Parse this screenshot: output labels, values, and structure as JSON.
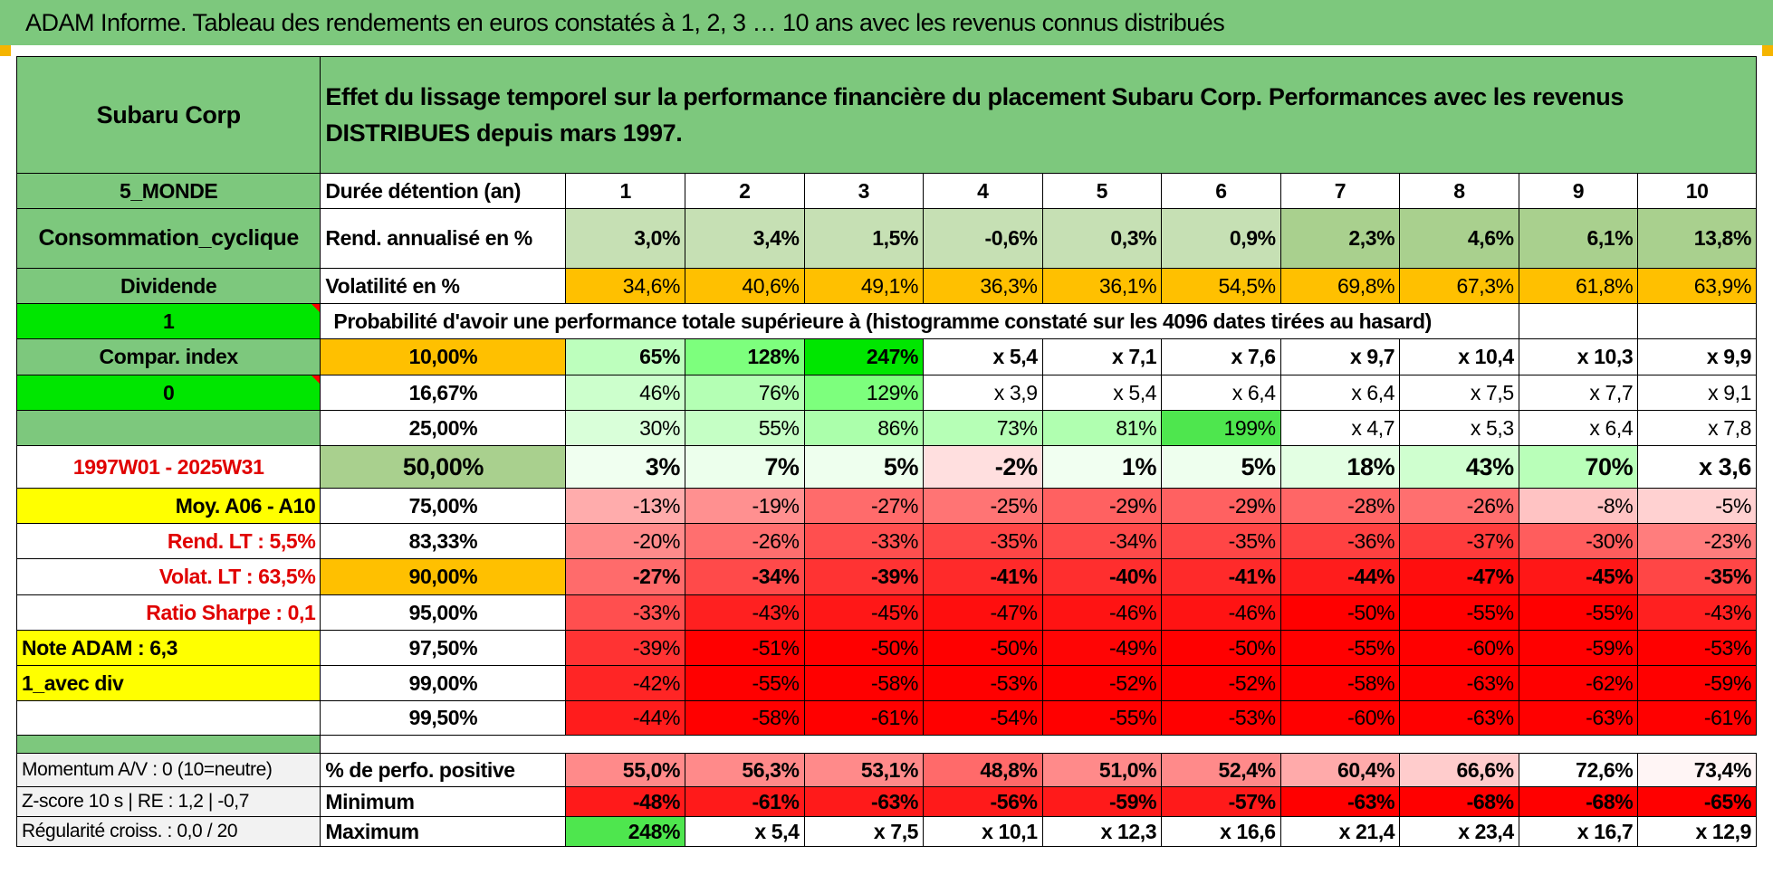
{
  "title": "ADAM Informe. Tableau des rendements en euros constatés à 1, 2, 3 … 10 ans avec les revenus connus distribués",
  "header": {
    "name": "Subaru Corp",
    "description": "Effet du lissage temporel sur la performance financière du placement Subaru Corp. Performances avec les revenus DISTRIBUES depuis mars 1997."
  },
  "left_labels": {
    "zone": "5_MONDE",
    "sector": "Consommation_cyclique",
    "type": "Dividende",
    "flag_1": "1",
    "compar_index": "Compar. index",
    "flag_0": "0",
    "blank": "",
    "period": "1997W01 - 2025W31",
    "moy": "Moy. A06 - A10",
    "rend_lt": "Rend. LT :    5,5%",
    "volat_lt": "Volat. LT :    63,5%",
    "sharpe": "Ratio Sharpe :    0,1",
    "note": "Note ADAM : 6,3",
    "avec_div": "1_avec div",
    "momentum": "Momentum A/V : 0 (10=neutre)",
    "zscore": "Z-score 10 s | RE : 1,2 | -0,7",
    "regularite": "Régularité croiss. : 0,0 / 20"
  },
  "row_labels": {
    "duree": "Durée détention (an)",
    "rend": "Rend. annualisé en %",
    "vol": "Volatilité en %",
    "proba": "Probabilité d'avoir une performance totale supérieure à (histogramme constaté sur les 4096 dates tirées au hasard)",
    "positive": "% de perfo. positive",
    "minimum": "Minimum",
    "maximum": "Maximum"
  },
  "years": [
    "1",
    "2",
    "3",
    "4",
    "5",
    "6",
    "7",
    "8",
    "9",
    "10"
  ],
  "rend": [
    "3,0%",
    "3,4%",
    "1,5%",
    "-0,6%",
    "0,3%",
    "0,9%",
    "2,3%",
    "4,6%",
    "6,1%",
    "13,8%"
  ],
  "vol": [
    "34,6%",
    "40,6%",
    "49,1%",
    "36,3%",
    "36,1%",
    "54,5%",
    "69,8%",
    "67,3%",
    "61,8%",
    "63,9%"
  ],
  "quantile_rows": [
    {
      "pct": "10,00%",
      "values": [
        "65%",
        "128%",
        "247%",
        "x 5,4",
        "x 7,1",
        "x 7,6",
        "x 9,7",
        "x 10,4",
        "x 10,3",
        "x 9,9"
      ]
    },
    {
      "pct": "16,67%",
      "values": [
        "46%",
        "76%",
        "129%",
        "x 3,9",
        "x 5,4",
        "x 6,4",
        "x 6,4",
        "x 7,5",
        "x 7,7",
        "x 9,1"
      ]
    },
    {
      "pct": "25,00%",
      "values": [
        "30%",
        "55%",
        "86%",
        "73%",
        "81%",
        "199%",
        "x 4,7",
        "x 5,3",
        "x 6,4",
        "x 7,8"
      ]
    },
    {
      "pct": "50,00%",
      "values": [
        "3%",
        "7%",
        "5%",
        "-2%",
        "1%",
        "5%",
        "18%",
        "43%",
        "70%",
        "x 3,6"
      ]
    },
    {
      "pct": "75,00%",
      "values": [
        "-13%",
        "-19%",
        "-27%",
        "-25%",
        "-29%",
        "-29%",
        "-28%",
        "-26%",
        "-8%",
        "-5%"
      ]
    },
    {
      "pct": "83,33%",
      "values": [
        "-20%",
        "-26%",
        "-33%",
        "-35%",
        "-34%",
        "-35%",
        "-36%",
        "-37%",
        "-30%",
        "-23%"
      ]
    },
    {
      "pct": "90,00%",
      "values": [
        "-27%",
        "-34%",
        "-39%",
        "-41%",
        "-40%",
        "-41%",
        "-44%",
        "-47%",
        "-45%",
        "-35%"
      ]
    },
    {
      "pct": "95,00%",
      "values": [
        "-33%",
        "-43%",
        "-45%",
        "-47%",
        "-46%",
        "-46%",
        "-50%",
        "-55%",
        "-55%",
        "-43%"
      ]
    },
    {
      "pct": "97,50%",
      "values": [
        "-39%",
        "-51%",
        "-50%",
        "-50%",
        "-49%",
        "-50%",
        "-55%",
        "-60%",
        "-59%",
        "-53%"
      ]
    },
    {
      "pct": "99,00%",
      "values": [
        "-42%",
        "-55%",
        "-58%",
        "-53%",
        "-52%",
        "-52%",
        "-58%",
        "-63%",
        "-62%",
        "-59%"
      ]
    },
    {
      "pct": "99,50%",
      "values": [
        "-44%",
        "-58%",
        "-61%",
        "-54%",
        "-55%",
        "-53%",
        "-60%",
        "-63%",
        "-63%",
        "-61%"
      ]
    }
  ],
  "positive": [
    "55,0%",
    "56,3%",
    "53,1%",
    "48,8%",
    "51,0%",
    "52,4%",
    "60,4%",
    "66,6%",
    "72,6%",
    "73,4%"
  ],
  "minimum": [
    "-48%",
    "-61%",
    "-63%",
    "-56%",
    "-59%",
    "-57%",
    "-63%",
    "-68%",
    "-68%",
    "-65%"
  ],
  "maximum": [
    "248%",
    "x 5,4",
    "x 7,5",
    "x 10,1",
    "x 12,3",
    "x 16,6",
    "x 21,4",
    "x 23,4",
    "x 16,7",
    "x 12,9"
  ],
  "colors": {
    "header_green": "#7dc87d",
    "bright_green": "#00e600",
    "yellow": "#ffff00",
    "orange": "#ffc000",
    "sage": "#a9d08e",
    "label_red": "#e00000"
  }
}
